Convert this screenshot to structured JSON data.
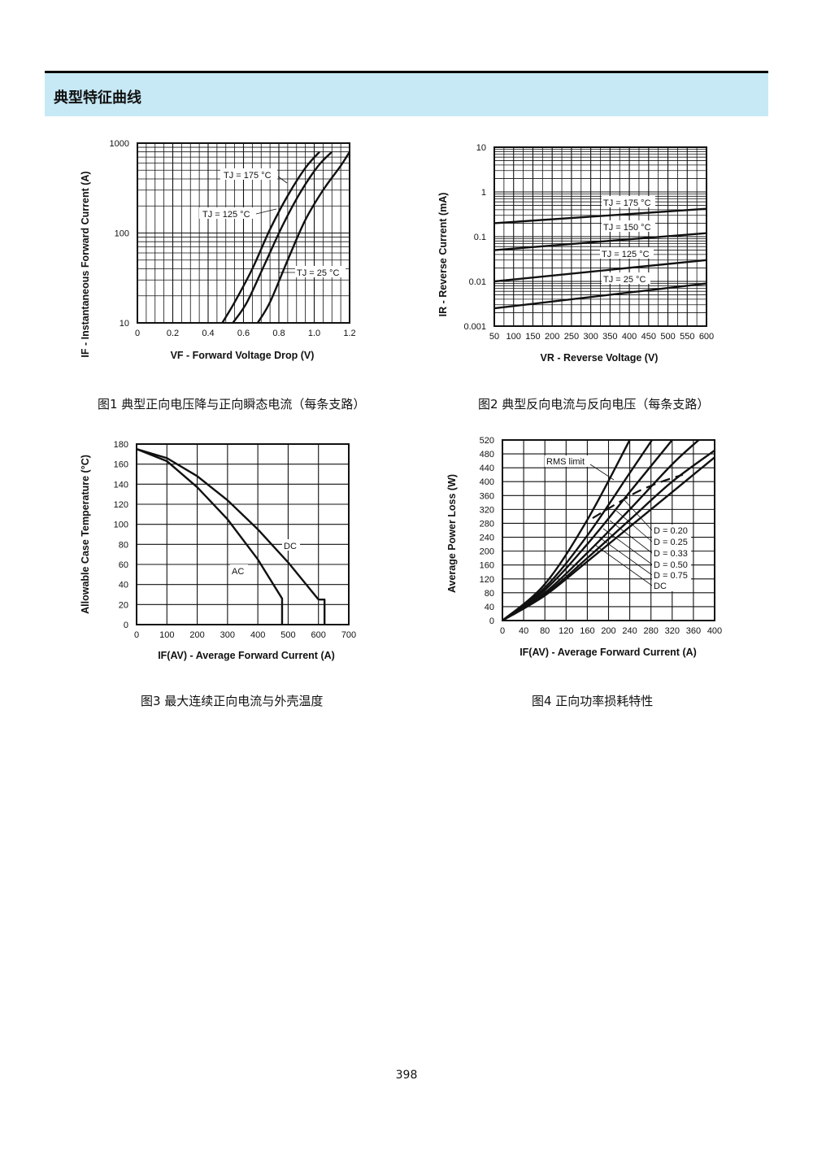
{
  "section_title": "典型特征曲线",
  "page_number": "398",
  "captions": {
    "fig1": "图1  典型正向电压降与正向瞬态电流（每条支路）",
    "fig2": "图2  典型反向电流与反向电压（每条支路）",
    "fig3": "图3  最大连续正向电流与外壳温度",
    "fig4": "图4  正向功率损耗特性"
  },
  "chart_data": [
    {
      "id": "fig1",
      "type": "line",
      "y_scale": "log",
      "title": "",
      "xlabel": "VF - Forward Voltage Drop (V)",
      "ylabel": "IF - Instantaneous Forward Current (A)",
      "xlim": [
        0,
        1.2
      ],
      "ylim": [
        10,
        1000
      ],
      "x_ticks": [
        "0",
        "0.2",
        "0.4",
        "0.6",
        "0.8",
        "1.0",
        "1.2"
      ],
      "y_ticks": [
        "10",
        "100",
        "1000"
      ],
      "grid": true,
      "series": [
        {
          "name": "TJ = 175 °C",
          "x": [
            0.48,
            0.55,
            0.65,
            0.75,
            0.85,
            0.95,
            1.03
          ],
          "y": [
            10,
            17,
            40,
            110,
            260,
            530,
            800
          ]
        },
        {
          "name": "TJ = 125 °C",
          "x": [
            0.54,
            0.62,
            0.72,
            0.82,
            0.92,
            1.02,
            1.1
          ],
          "y": [
            10,
            17,
            45,
            120,
            280,
            550,
            800
          ]
        },
        {
          "name": "TJ = 25 °C",
          "x": [
            0.68,
            0.75,
            0.85,
            0.95,
            1.05,
            1.15,
            1.2
          ],
          "y": [
            10,
            17,
            50,
            140,
            300,
            560,
            800
          ]
        }
      ]
    },
    {
      "id": "fig2",
      "type": "line",
      "y_scale": "log",
      "title": "",
      "xlabel": "VR - Reverse Voltage (V)",
      "ylabel": "IR - Reverse Current (mA)",
      "xlim": [
        50,
        600
      ],
      "ylim": [
        0.001,
        10
      ],
      "x_ticks": [
        "50",
        "100",
        "150",
        "200",
        "250",
        "300",
        "350",
        "400",
        "450",
        "500",
        "550",
        "600"
      ],
      "y_ticks": [
        "0.001",
        "0.01",
        "0.1",
        "1",
        "10"
      ],
      "grid": true,
      "series": [
        {
          "name": "TJ = 175 °C",
          "x": [
            50,
            600
          ],
          "y": [
            0.2,
            0.42
          ]
        },
        {
          "name": "TJ = 150 °C",
          "x": [
            50,
            600
          ],
          "y": [
            0.05,
            0.12
          ]
        },
        {
          "name": "TJ = 125 °C",
          "x": [
            50,
            600
          ],
          "y": [
            0.01,
            0.03
          ]
        },
        {
          "name": "TJ = 25 °C",
          "x": [
            50,
            600
          ],
          "y": [
            0.0025,
            0.009
          ]
        }
      ]
    },
    {
      "id": "fig3",
      "type": "line",
      "title": "",
      "xlabel": "IF(AV) - Average Forward Current (A)",
      "ylabel": "Allowable Case Temperature (°C)",
      "xlim": [
        0,
        700
      ],
      "ylim": [
        0,
        180
      ],
      "x_ticks": [
        "0",
        "100",
        "200",
        "300",
        "400",
        "500",
        "600",
        "700"
      ],
      "y_ticks": [
        "0",
        "20",
        "40",
        "60",
        "80",
        "100",
        "120",
        "140",
        "160",
        "180"
      ],
      "grid": true,
      "series": [
        {
          "name": "DC",
          "x": [
            0,
            100,
            200,
            300,
            400,
            500,
            600,
            620,
            620
          ],
          "y": [
            175,
            166,
            148,
            124,
            95,
            62,
            25,
            25,
            0
          ]
        },
        {
          "name": "AC",
          "x": [
            0,
            100,
            200,
            300,
            400,
            480,
            480
          ],
          "y": [
            175,
            163,
            137,
            105,
            65,
            26,
            0
          ]
        }
      ]
    },
    {
      "id": "fig4",
      "type": "line",
      "title": "",
      "xlabel": "IF(AV) - Average Forward Current (A)",
      "ylabel": "Average Power Loss (W)",
      "xlim": [
        0,
        400
      ],
      "ylim": [
        0,
        520
      ],
      "x_ticks": [
        "0",
        "40",
        "80",
        "120",
        "160",
        "200",
        "240",
        "280",
        "320",
        "360",
        "400"
      ],
      "y_ticks": [
        "0",
        "40",
        "80",
        "120",
        "160",
        "200",
        "240",
        "280",
        "320",
        "360",
        "400",
        "440",
        "480",
        "520"
      ],
      "grid": true,
      "series": [
        {
          "name": "D = 0.20",
          "x": [
            0,
            80,
            160,
            240
          ],
          "y": [
            0,
            105,
            290,
            520
          ]
        },
        {
          "name": "D = 0.25",
          "x": [
            0,
            80,
            160,
            240,
            282
          ],
          "y": [
            0,
            95,
            245,
            425,
            520
          ]
        },
        {
          "name": "D = 0.33",
          "x": [
            0,
            80,
            160,
            240,
            320
          ],
          "y": [
            0,
            88,
            220,
            370,
            520
          ]
        },
        {
          "name": "D = 0.50",
          "x": [
            0,
            80,
            160,
            240,
            320,
            370
          ],
          "y": [
            0,
            80,
            195,
            320,
            450,
            520
          ]
        },
        {
          "name": "D = 0.75",
          "x": [
            0,
            80,
            160,
            240,
            320,
            400
          ],
          "y": [
            0,
            75,
            180,
            290,
            400,
            490
          ]
        },
        {
          "name": "DC",
          "x": [
            0,
            80,
            160,
            240,
            320,
            400
          ],
          "y": [
            0,
            72,
            170,
            270,
            370,
            470
          ]
        },
        {
          "name": "RMS limit",
          "x": [
            170,
            230,
            260,
            300,
            340
          ],
          "y": [
            295,
            350,
            375,
            400,
            420
          ]
        }
      ],
      "annotations": [
        "RMS limit",
        "D = 0.20",
        "D = 0.25",
        "D = 0.33",
        "D = 0.50",
        "D = 0.75",
        "DC"
      ]
    }
  ]
}
